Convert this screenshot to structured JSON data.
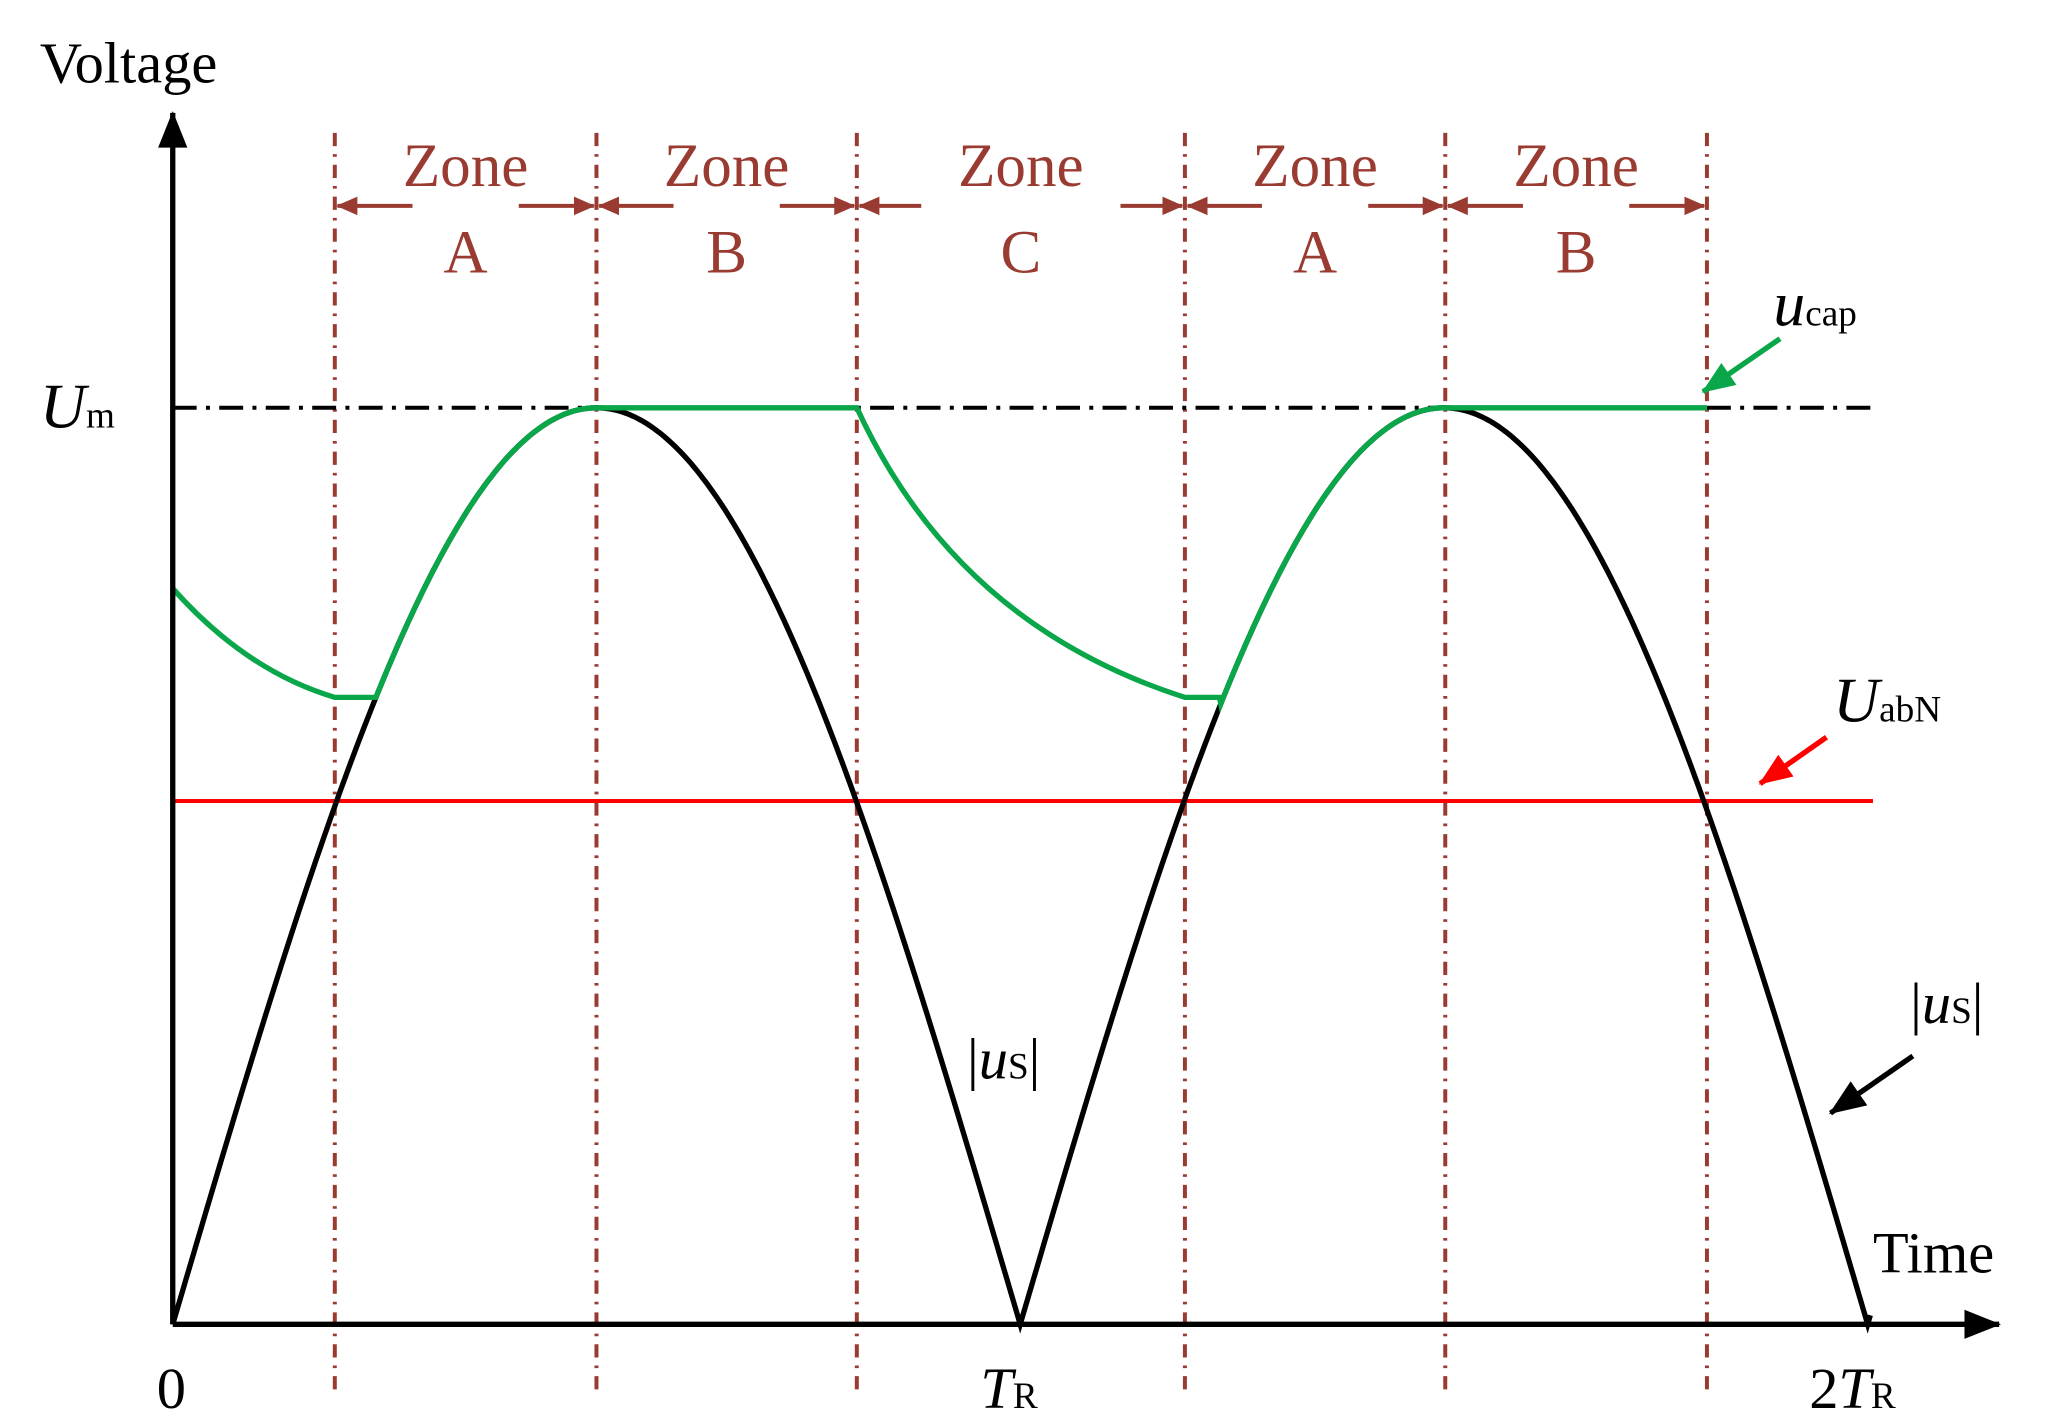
{
  "axes": {
    "y_label": "Voltage",
    "x_label": "Time"
  },
  "x_ticks": [
    {
      "text": "0"
    },
    {
      "sym": "T",
      "sub": "R"
    },
    {
      "coef": "2",
      "sym": "T",
      "sub": "R"
    }
  ],
  "levels": {
    "um": {
      "sym": "U",
      "sub": "m"
    }
  },
  "curve_labels": {
    "ucap": {
      "sym": "u",
      "sub": "cap"
    },
    "uabn": {
      "sym": "U",
      "sub": "abN"
    },
    "us_mid": {
      "open": "|",
      "sym": "u",
      "sub": "S",
      "close": "|"
    },
    "us_right": {
      "open": "|",
      "sym": "u",
      "sub": "S",
      "close": "|"
    }
  },
  "zones": [
    {
      "word": "Zone",
      "letter": "A"
    },
    {
      "word": "Zone",
      "letter": "B"
    },
    {
      "word": "Zone",
      "letter": "C"
    },
    {
      "word": "Zone",
      "letter": "A"
    },
    {
      "word": "Zone",
      "letter": "B"
    }
  ]
}
